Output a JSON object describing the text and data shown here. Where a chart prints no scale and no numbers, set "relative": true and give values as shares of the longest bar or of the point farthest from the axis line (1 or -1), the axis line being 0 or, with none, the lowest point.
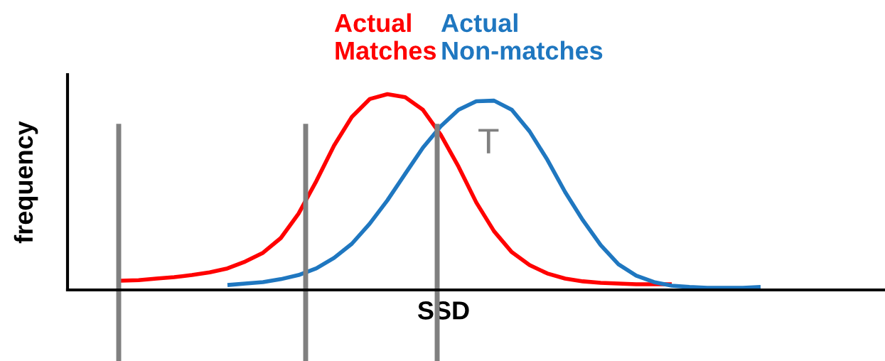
{
  "chart_data": {
    "type": "line",
    "relative": true,
    "xlabel": "SSD",
    "ylabel": "frequency",
    "categories": [
      null,
      null,
      null,
      null,
      null,
      null,
      null,
      null,
      null,
      null,
      null,
      null,
      null,
      null,
      null,
      null,
      null,
      null,
      null,
      null,
      null,
      null,
      null,
      null,
      null,
      null,
      null,
      null,
      null,
      null,
      null,
      null,
      null,
      null,
      null,
      null,
      null,
      null,
      null,
      null,
      null,
      null,
      null,
      null,
      null,
      null,
      null
    ],
    "series": [
      {
        "name": "Actual\nMatches",
        "color": "#ff0000",
        "values": [
          null,
          null,
          null,
          0.047,
          0.05,
          0.058,
          0.065,
          0.076,
          0.09,
          0.11,
          0.145,
          0.19,
          0.265,
          0.39,
          0.556,
          0.738,
          0.884,
          0.975,
          1.0,
          0.985,
          0.92,
          0.793,
          0.63,
          0.447,
          0.3,
          0.193,
          0.127,
          0.084,
          0.058,
          0.044,
          0.036,
          0.033,
          0.029,
          0.029,
          0.029,
          null,
          null,
          null,
          null,
          null,
          null,
          null,
          null,
          null,
          null,
          null,
          null
        ]
      },
      {
        "name": "Actual\nNon-matches",
        "color": "#1f77c0",
        "values": [
          null,
          null,
          null,
          null,
          null,
          null,
          null,
          null,
          null,
          0.025,
          0.033,
          0.04,
          0.055,
          0.076,
          0.11,
          0.164,
          0.236,
          0.338,
          0.458,
          0.593,
          0.727,
          0.836,
          0.92,
          0.964,
          0.967,
          0.92,
          0.81,
          0.665,
          0.5,
          0.356,
          0.229,
          0.131,
          0.073,
          0.04,
          0.022,
          0.015,
          0.011,
          0.011,
          0.011,
          0.015,
          null,
          null,
          null,
          null,
          null,
          null,
          null
        ]
      }
    ],
    "annotations": [
      "T"
    ],
    "legend": false,
    "marker": "none",
    "line_style": "solid"
  }
}
